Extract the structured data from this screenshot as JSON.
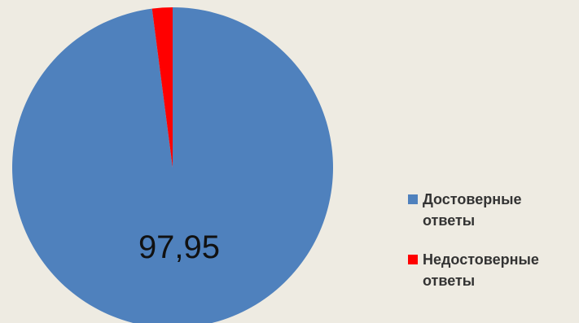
{
  "chart_data": {
    "type": "pie",
    "slices": [
      {
        "name": "Достоверные ответы",
        "value": 97.95,
        "color": "#4f81bd",
        "label": "97,95"
      },
      {
        "name": "Недостоверные ответы",
        "value": 2.05,
        "color": "#ff0000",
        "label": ""
      }
    ],
    "start_at": "12 o'clock",
    "direction": "clockwise",
    "legend_position": "right"
  }
}
